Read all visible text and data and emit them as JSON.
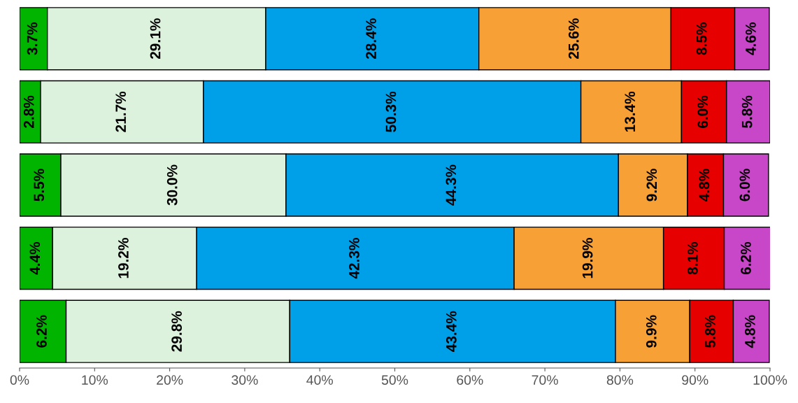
{
  "chart_data": {
    "type": "bar",
    "orientation": "horizontal",
    "stacked": true,
    "tick_labels": "x",
    "grid": false,
    "legend": false,
    "categories": [
      null,
      null,
      null,
      null,
      null
    ],
    "series": [
      {
        "color": "#00b400",
        "values": [
          3.7,
          2.8,
          5.5,
          4.4,
          6.2
        ],
        "value_labels": [
          "3.7%",
          "2.8%",
          "5.5%",
          "4.4%",
          "6.2%"
        ]
      },
      {
        "color": "#dcf2dc",
        "values": [
          29.1,
          21.7,
          30.0,
          19.2,
          29.8
        ],
        "value_labels": [
          "29.1%",
          "21.7%",
          "30.0%",
          "19.2%",
          "29.8%"
        ]
      },
      {
        "color": "#00a0e8",
        "values": [
          28.4,
          50.3,
          44.3,
          42.3,
          43.4
        ],
        "value_labels": [
          "28.4%",
          "50.3%",
          "44.3%",
          "42.3%",
          "43.4%"
        ]
      },
      {
        "color": "#f7a035",
        "values": [
          25.6,
          13.4,
          9.2,
          19.9,
          9.9
        ],
        "value_labels": [
          "25.6%",
          "13.4%",
          "9.2%",
          "19.9%",
          "9.9%"
        ]
      },
      {
        "color": "#e60000",
        "values": [
          8.5,
          6.0,
          4.8,
          8.1,
          5.8
        ],
        "value_labels": [
          "8.5%",
          "6.0%",
          "4.8%",
          "8.1%",
          "5.8%"
        ]
      },
      {
        "color": "#c846c8",
        "values": [
          4.6,
          5.8,
          6.0,
          6.2,
          4.8
        ],
        "value_labels": [
          "4.6%",
          "5.8%",
          "6.0%",
          "6.2%",
          "4.8%"
        ]
      }
    ],
    "xlim": [
      0,
      100
    ],
    "xticks": [
      {
        "value": 0,
        "label": "0%"
      },
      {
        "value": 10,
        "label": "10%"
      },
      {
        "value": 20,
        "label": "20%"
      },
      {
        "value": 30,
        "label": "30%"
      },
      {
        "value": 40,
        "label": "40%"
      },
      {
        "value": 50,
        "label": "50%"
      },
      {
        "value": 60,
        "label": "60%"
      },
      {
        "value": 70,
        "label": "70%"
      },
      {
        "value": 80,
        "label": "80%"
      },
      {
        "value": 90,
        "label": "90%"
      },
      {
        "value": 100,
        "label": "100%"
      }
    ]
  }
}
